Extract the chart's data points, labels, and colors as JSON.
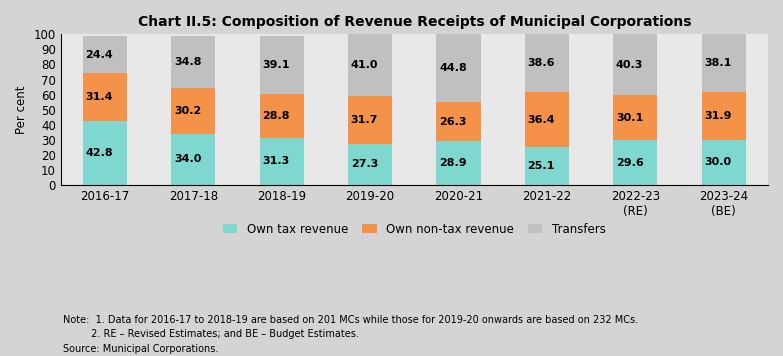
{
  "title": "Chart II.5: Composition of Revenue Receipts of Municipal Corporations",
  "categories": [
    "2016-17",
    "2017-18",
    "2018-19",
    "2019-20",
    "2020-21",
    "2021-22",
    "2022-23\n(RE)",
    "2023-24\n(BE)"
  ],
  "own_tax": [
    42.8,
    34.0,
    31.3,
    27.3,
    28.9,
    25.1,
    29.6,
    30.0
  ],
  "own_nontax": [
    31.4,
    30.2,
    28.8,
    31.7,
    26.3,
    36.4,
    30.1,
    31.9
  ],
  "transfers": [
    24.4,
    34.8,
    39.1,
    41.0,
    44.8,
    38.6,
    40.3,
    38.1
  ],
  "color_own_tax": "#7fd8d0",
  "color_own_nontax": "#f4924a",
  "color_transfers": "#c0c0c0",
  "ylabel": "Per cent",
  "ylim": [
    0,
    100
  ],
  "yticks": [
    0,
    10,
    20,
    30,
    40,
    50,
    60,
    70,
    80,
    90,
    100
  ],
  "legend_labels": [
    "Own tax revenue",
    "Own non-tax revenue",
    "Transfers"
  ],
  "note_line1": "Note:  1. Data for 2016-17 to 2018-19 are based on 201 MCs while those for 2019-20 onwards are based on 232 MCs.",
  "note_line2": "         2. RE – Revised Estimates; and BE – Budget Estimates.",
  "note_line3": "Source: Municipal Corporations.",
  "outer_bg": "#d4d4d4",
  "plot_bg": "#e8e8e8",
  "bar_width": 0.5,
  "title_fontsize": 10,
  "label_fontsize": 8,
  "axis_fontsize": 8.5
}
